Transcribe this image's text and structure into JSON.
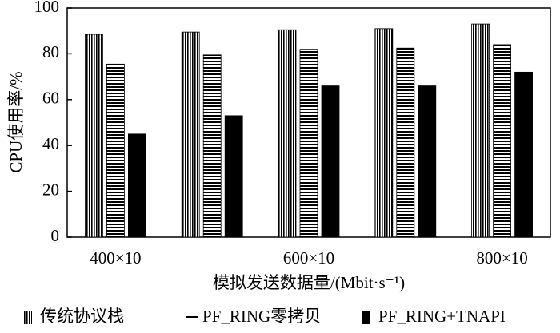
{
  "chart_data": {
    "type": "bar",
    "y_label": "CPU使用率/%",
    "x_label": "模拟发送数据量/(Mbit·s⁻¹)",
    "categories": [
      "400×10",
      null,
      "600×10",
      null,
      "800×10"
    ],
    "series": [
      {
        "name": "传统协议栈",
        "color": "#000000",
        "pattern": "vertical",
        "values": [
          88.5,
          89.5,
          90.5,
          91,
          93
        ]
      },
      {
        "name": "PF_RING零拷贝",
        "color": "#000000",
        "pattern": "horizontal",
        "values": [
          75.5,
          79.5,
          82,
          82.5,
          84
        ]
      },
      {
        "name": "PF_RING+TNAPI",
        "color": "#000000",
        "pattern": "solid",
        "values": [
          45,
          53,
          66,
          66,
          72
        ]
      }
    ],
    "ylim": [
      0,
      100
    ],
    "yticks": [
      0,
      20,
      40,
      60,
      80,
      100
    ],
    "grid": false,
    "legend": "bottom"
  }
}
